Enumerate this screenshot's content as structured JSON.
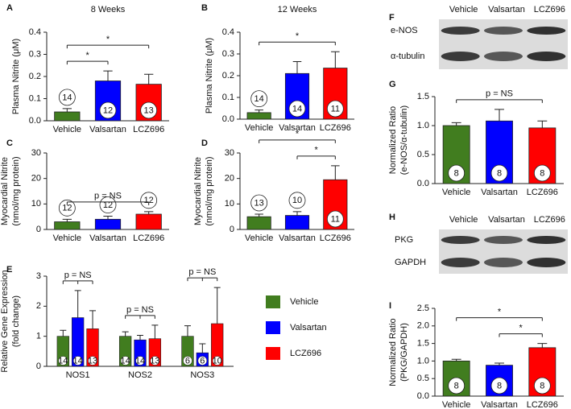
{
  "chart_data": [
    {
      "type": "bar",
      "label": "A",
      "title": "8 Weeks",
      "y_label": [
        "Plasma Nitrite (μM)"
      ],
      "categories": [
        "Vehicle",
        "Valsartan",
        "LCZ696"
      ],
      "values": [
        0.04,
        0.18,
        0.165
      ],
      "errors": [
        0.015,
        0.045,
        0.045
      ],
      "n": [
        14,
        12,
        13
      ],
      "colors": [
        "#417d1f",
        "#0000ff",
        "#ff0000"
      ],
      "ylim": [
        0,
        0.4
      ],
      "yticks": [
        {
          "value": 0,
          "label": "0.0"
        },
        0.1,
        0.2,
        0.3,
        0.4
      ],
      "annotations": [
        {
          "text": "*",
          "from": "Vehicle",
          "to": "Valsartan"
        },
        {
          "text": "*",
          "from": "Vehicle",
          "to": "LCZ696"
        }
      ]
    },
    {
      "type": "bar",
      "label": "B",
      "title": "12 Weeks",
      "y_label": [
        "Plasma Nitrite (μM)"
      ],
      "categories": [
        "Vehicle",
        "Valsartan",
        "LCZ696"
      ],
      "values": [
        0.03,
        0.21,
        0.235
      ],
      "errors": [
        0.012,
        0.055,
        0.075
      ],
      "n": [
        14,
        14,
        11
      ],
      "colors": [
        "#417d1f",
        "#0000ff",
        "#ff0000"
      ],
      "ylim": [
        0,
        0.4
      ],
      "yticks": [
        {
          "value": 0,
          "label": "0.0"
        },
        0.1,
        0.2,
        0.3,
        0.4
      ],
      "annotations": [
        {
          "text": "*",
          "from": "Vehicle",
          "to": "LCZ696"
        }
      ]
    },
    {
      "type": "bar",
      "label": "C",
      "y_label": [
        "Myocardial Nitrite",
        "(nmol/mg protein)"
      ],
      "categories": [
        "Vehicle",
        "Valsartan",
        "LCZ696"
      ],
      "values": [
        3,
        4,
        6
      ],
      "errors": [
        1,
        1.2,
        1
      ],
      "n": [
        12,
        12,
        12
      ],
      "colors": [
        "#417d1f",
        "#0000ff",
        "#ff0000"
      ],
      "ylim": [
        0,
        30
      ],
      "yticks": [
        0,
        10,
        20,
        30
      ],
      "annotations": [
        {
          "text": "p = NS",
          "from": "Vehicle",
          "to": "LCZ696"
        }
      ]
    },
    {
      "type": "bar",
      "label": "D",
      "y_label": [
        "Myocardial Nitrite",
        "(nmol/mg protein)"
      ],
      "categories": [
        "Vehicle",
        "Valsartan",
        "LCZ696"
      ],
      "values": [
        5,
        5.5,
        19.5
      ],
      "errors": [
        1,
        1.5,
        5.5
      ],
      "n": [
        13,
        10,
        11
      ],
      "colors": [
        "#417d1f",
        "#0000ff",
        "#ff0000"
      ],
      "ylim": [
        0,
        30
      ],
      "yticks": [
        0,
        10,
        20,
        30
      ],
      "annotations": [
        {
          "text": "*",
          "from": "Valsartan",
          "to": "LCZ696"
        },
        {
          "text": "*",
          "from": "Vehicle",
          "to": "LCZ696"
        }
      ]
    },
    {
      "type": "grouped_bar",
      "label": "E",
      "y_label": [
        "Relative Gene Expression",
        "(fold change)"
      ],
      "categories": [
        "NOS1",
        "NOS2",
        "NOS3"
      ],
      "series": [
        {
          "name": "Vehicle",
          "color": "#417d1f",
          "values": [
            1.0,
            1.0,
            1.0
          ],
          "errors": [
            0.2,
            0.15,
            0.35
          ],
          "n": [
            14,
            14,
            6
          ]
        },
        {
          "name": "Valsartan",
          "color": "#0000ff",
          "values": [
            1.62,
            0.88,
            0.45
          ],
          "errors": [
            0.9,
            0.15,
            0.3
          ],
          "n": [
            14,
            14,
            6
          ]
        },
        {
          "name": "LCZ696",
          "color": "#ff0000",
          "values": [
            1.25,
            0.92,
            1.42
          ],
          "errors": [
            0.6,
            0.45,
            1.2
          ],
          "n": [
            13,
            13,
            10
          ]
        }
      ],
      "ylim": [
        0,
        3
      ],
      "yticks": [
        0,
        1,
        2,
        3
      ],
      "legend": "right",
      "annotations": [
        {
          "text": "p = NS",
          "category": "NOS1"
        },
        {
          "text": "p = NS",
          "category": "NOS2"
        },
        {
          "text": "p = NS",
          "category": "NOS3"
        }
      ]
    },
    {
      "type": "blot",
      "label": "F",
      "lanes": [
        "Vehicle",
        "Valsartan",
        "LCZ696"
      ],
      "rows": [
        "e-NOS",
        "α-tubulin"
      ]
    },
    {
      "type": "bar",
      "label": "G",
      "y_label": [
        "Normalized Ratio",
        "(e-NOS/α-tubulin)"
      ],
      "categories": [
        "Vehicle",
        "Valsartan",
        "LCZ696"
      ],
      "values": [
        1.0,
        1.08,
        0.96
      ],
      "errors": [
        0.05,
        0.2,
        0.12
      ],
      "n": [
        8,
        8,
        8
      ],
      "colors": [
        "#417d1f",
        "#0000ff",
        "#ff0000"
      ],
      "ylim": [
        0,
        1.5
      ],
      "yticks": [
        {
          "value": 0,
          "label": "0.0"
        },
        0.5,
        {
          "value": 1,
          "label": "1.0"
        },
        1.5
      ],
      "annotations": [
        {
          "text": "p = NS",
          "from": "Vehicle",
          "to": "LCZ696"
        }
      ]
    },
    {
      "type": "blot",
      "label": "H",
      "lanes": [
        "Vehicle",
        "Valsartan",
        "LCZ696"
      ],
      "rows": [
        "PKG",
        "GAPDH"
      ]
    },
    {
      "type": "bar",
      "label": "I",
      "y_label": [
        "Normalized Ratio",
        "(PKG/GAPDH)"
      ],
      "categories": [
        "Vehicle",
        "Valsartan",
        "LCZ696"
      ],
      "values": [
        1.0,
        0.88,
        1.38
      ],
      "errors": [
        0.05,
        0.06,
        0.12
      ],
      "n": [
        8,
        8,
        8
      ],
      "colors": [
        "#417d1f",
        "#0000ff",
        "#ff0000"
      ],
      "ylim": [
        0,
        2.5
      ],
      "yticks": [
        {
          "value": 0,
          "label": "0.0"
        },
        0.5,
        {
          "value": 1,
          "label": "1.0"
        },
        1.5,
        {
          "value": 2,
          "label": "2.0"
        },
        2.5
      ],
      "annotations": [
        {
          "text": "*",
          "from": "Valsartan",
          "to": "LCZ696"
        },
        {
          "text": "*",
          "from": "Vehicle",
          "to": "LCZ696"
        }
      ]
    }
  ]
}
